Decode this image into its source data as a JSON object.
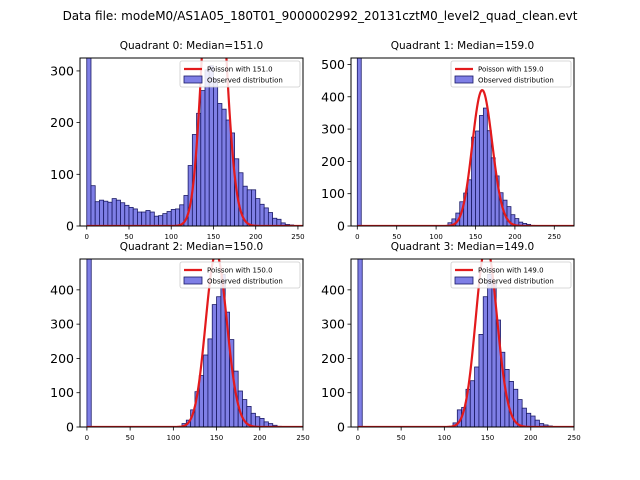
{
  "figure_title": "Data file: modeM0/AS1A05_180T01_9000002992_20131cztM0_level2_quad_clean.evt",
  "colors": {
    "bar_fill": "#7f7fe6",
    "bar_edge": "#1a1a66",
    "poisson_line": "#e31a1c"
  },
  "chart_data": [
    {
      "type": "bar",
      "title": "Quadrant 0: Median=151.0",
      "legend": [
        "Poisson with 151.0",
        "Observed distribution"
      ],
      "legend_position": "top-right",
      "xlim": [
        -8,
        256
      ],
      "ylim": [
        0,
        325
      ],
      "xticks": [
        0,
        50,
        100,
        150,
        200,
        250
      ],
      "yticks": [
        0,
        100,
        200,
        300
      ],
      "bin_width": 5,
      "bin_starts": [
        0,
        5,
        10,
        15,
        20,
        25,
        30,
        35,
        40,
        45,
        50,
        55,
        60,
        65,
        70,
        75,
        80,
        85,
        90,
        95,
        100,
        105,
        110,
        115,
        120,
        125,
        130,
        135,
        140,
        145,
        150,
        155,
        160,
        165,
        170,
        175,
        180,
        185,
        190,
        195,
        200,
        205,
        210,
        215,
        220,
        225,
        230,
        235,
        240,
        245
      ],
      "values": [
        325,
        78,
        47,
        50,
        48,
        46,
        53,
        50,
        45,
        40,
        36,
        33,
        27,
        27,
        30,
        27,
        19,
        20,
        24,
        28,
        32,
        33,
        41,
        59,
        117,
        177,
        218,
        262,
        302,
        310,
        285,
        237,
        226,
        205,
        180,
        130,
        103,
        77,
        70,
        70,
        53,
        42,
        35,
        26,
        15,
        13,
        6,
        3,
        2,
        1
      ],
      "poisson_mean": 151.0
    },
    {
      "type": "bar",
      "title": "Quadrant 1: Median=159.0",
      "legend": [
        "Poisson with 159.0",
        "Observed distribution"
      ],
      "legend_position": "top-right",
      "xlim": [
        -8,
        275
      ],
      "ylim": [
        0,
        520
      ],
      "xticks": [
        0,
        50,
        100,
        150,
        200,
        250
      ],
      "yticks": [
        0,
        100,
        200,
        300,
        400,
        500
      ],
      "bin_width": 5,
      "bin_starts": [
        0,
        5,
        10,
        15,
        20,
        25,
        30,
        35,
        40,
        45,
        50,
        55,
        60,
        65,
        70,
        75,
        80,
        85,
        90,
        95,
        100,
        105,
        110,
        115,
        120,
        125,
        130,
        135,
        140,
        145,
        150,
        155,
        160,
        165,
        170,
        175,
        180,
        185,
        190,
        195,
        200,
        205,
        210,
        215,
        220,
        225,
        230,
        235,
        240,
        245,
        250,
        255,
        260
      ],
      "values": [
        520,
        0,
        0,
        0,
        0,
        0,
        0,
        0,
        0,
        0,
        0,
        0,
        0,
        0,
        0,
        0,
        0,
        0,
        0,
        0,
        0,
        0,
        0,
        10,
        22,
        40,
        75,
        102,
        143,
        275,
        294,
        342,
        365,
        295,
        211,
        155,
        103,
        80,
        60,
        35,
        23,
        12,
        8,
        5,
        2,
        1,
        1,
        0,
        0,
        0,
        0,
        0,
        0
      ],
      "poisson_mean": 159.0
    },
    {
      "type": "bar",
      "title": "Quadrant 2: Median=150.0",
      "legend": [
        "Poisson with 150.0",
        "Observed distribution"
      ],
      "legend_position": "top-right",
      "xlim": [
        -8,
        250
      ],
      "ylim": [
        0,
        490
      ],
      "xticks": [
        0,
        50,
        100,
        150,
        200,
        250
      ],
      "yticks": [
        0,
        100,
        200,
        300,
        400
      ],
      "bin_width": 5,
      "bin_starts": [
        0,
        5,
        10,
        15,
        20,
        25,
        30,
        35,
        40,
        45,
        50,
        55,
        60,
        65,
        70,
        75,
        80,
        85,
        90,
        95,
        100,
        105,
        110,
        115,
        120,
        125,
        130,
        135,
        140,
        145,
        150,
        155,
        160,
        165,
        170,
        175,
        180,
        185,
        190,
        195,
        200,
        205,
        210,
        215,
        220,
        225,
        230,
        235
      ],
      "values": [
        490,
        0,
        0,
        0,
        0,
        0,
        0,
        0,
        0,
        0,
        0,
        0,
        0,
        0,
        0,
        0,
        0,
        0,
        0,
        0,
        0,
        0,
        10,
        20,
        50,
        103,
        150,
        210,
        257,
        357,
        380,
        445,
        335,
        255,
        163,
        105,
        80,
        60,
        40,
        30,
        25,
        15,
        10,
        5,
        2,
        1,
        0,
        0
      ],
      "poisson_mean": 150.0
    },
    {
      "type": "bar",
      "title": "Quadrant 3: Median=149.0",
      "legend": [
        "Poisson with 149.0",
        "Observed distribution"
      ],
      "legend_position": "top-right",
      "xlim": [
        -8,
        250
      ],
      "ylim": [
        0,
        490
      ],
      "xticks": [
        0,
        50,
        100,
        150,
        200,
        250
      ],
      "yticks": [
        0,
        100,
        200,
        300,
        400
      ],
      "bin_width": 5,
      "bin_starts": [
        0,
        5,
        10,
        15,
        20,
        25,
        30,
        35,
        40,
        45,
        50,
        55,
        60,
        65,
        70,
        75,
        80,
        85,
        90,
        95,
        100,
        105,
        110,
        115,
        120,
        125,
        130,
        135,
        140,
        145,
        150,
        155,
        160,
        165,
        170,
        175,
        180,
        185,
        190,
        195,
        200,
        205,
        210,
        215,
        220,
        225,
        230,
        235
      ],
      "values": [
        490,
        0,
        0,
        0,
        0,
        0,
        0,
        0,
        0,
        0,
        0,
        0,
        0,
        0,
        0,
        0,
        0,
        0,
        0,
        0,
        0,
        0,
        12,
        50,
        57,
        110,
        135,
        175,
        270,
        380,
        445,
        420,
        312,
        218,
        168,
        133,
        110,
        80,
        55,
        40,
        32,
        20,
        10,
        6,
        3,
        1,
        0,
        0
      ],
      "poisson_mean": 149.0
    }
  ]
}
